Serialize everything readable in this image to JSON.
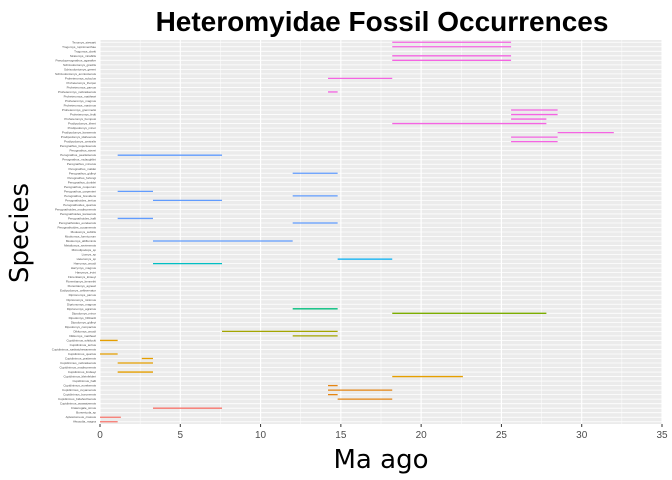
{
  "chart_data": {
    "type": "range-segment",
    "title": "Heteromyidae Fossil Occurrences",
    "xlabel": "Ma ago",
    "ylabel": "Species",
    "xlim": [
      0,
      35
    ],
    "x_ticks": [
      0,
      5,
      10,
      15,
      20,
      25,
      30,
      35
    ],
    "grid": true,
    "legend": "none",
    "panel_background": "#EBEBEB",
    "grid_color": "#FFFFFF",
    "categories": [
      "Texomys_stewarti",
      "Trogomys_rupinimenthae",
      "Trogomys_clarki",
      "Stratomys_mirabilis",
      "Pseudoperognathus_agarafter",
      "Schizodontomys_gracilis",
      "Schizodontomys_greeni",
      "Schizodontomys_amnicolensis",
      "Proheteromys_sulculus",
      "Proheteromys_thorpei",
      "Proheteromys_parvus",
      "Proheteromys_nebraskensis",
      "Proheteromys_matthewi",
      "Proheteromys_magnus",
      "Proheteromys_maximus",
      "Proheteromys_gremmelsi",
      "Proheteromys_fedti",
      "Proheteromys_bumpusi",
      "Prodipodomys_tiheni",
      "Prodipodomys_minor",
      "Prodipodomys_kansensis",
      "Prodipodomys_idahoensis",
      "Prodipodomys_centralis",
      "Perognathus_trojectioensis",
      "Perognathus_stevei",
      "Perognathus_pearlettensis",
      "Perognathus_mclaughlini",
      "Perognathus_minutus",
      "Perognathus_maldei",
      "Perognathus_gidleyi",
      "Perognathus_furlongi",
      "Perognathus_dunklei",
      "Perognathus_coquorum",
      "Perognathus_carpenteri",
      "Perognathus_brevidens",
      "Perognathoides_tertius",
      "Perognathoides_quartus",
      "Perognathoides_madisonensis",
      "Perognathoides_kansensis",
      "Perognathoides_halli",
      "Perognathoides_eurekensis",
      "Perognathoides_cuyamensis",
      "Mookomys_subtilis",
      "Mookomys_formicorum",
      "Mookomys_altifluminis",
      "Metaliomys_sevierensis",
      "Microdipodops_sp",
      "Liomys_sp",
      "Heteromys_sp",
      "Harrymys_woodi",
      "Harrymys_magnus",
      "Harrymys_irvini",
      "Florentiamys_kinseyi",
      "Florentiamys_kennethi",
      "Florentiamys_agnewi",
      "Eodipodomys_celtiservator",
      "Diprionomys_parvus",
      "Diprionomys_minimus",
      "Diprionomys_magnus",
      "Diprionomys_agrarius",
      "Dipodomys_minor",
      "Dipodomys_hibbardi",
      "Dipodomys_gidleyi",
      "Dipodomys_compactus",
      "Dikkomys_woodi",
      "Dikkomys_matthewi",
      "Cupidinimus_whitlocki",
      "Cupidinimus_tertius",
      "Cupidinimus_saskatchewanensis",
      "Cupidinimus_quartus",
      "Cupidinimus_prattensis",
      "Cupidinimus_nebraskensis",
      "Cupidinimus_madisonensis",
      "Cupidinimus_lindsayi",
      "Cupidinimus_kleinfelderi",
      "Cupidinimus_halli",
      "Cupidinimus_eurekensis",
      "Cupidinimus_cuyamensis",
      "Cupidinimus_boronensis",
      "Cupidinimus_bidahochiensis",
      "Cupidinimus_avawatzensis",
      "Craterogale_simus",
      "Bursericola_sp",
      "Apletotomeus_crassus",
      "Alwoodia_magna"
    ],
    "segments": [
      {
        "category": "Texomys_stewarti",
        "start": 18.2,
        "end": 25.6,
        "color": "#F564E3"
      },
      {
        "category": "Trogomys_rupinimenthae",
        "start": 18.2,
        "end": 25.6,
        "color": "#F564E3"
      },
      {
        "category": "Stratomys_mirabilis",
        "start": 18.2,
        "end": 25.6,
        "color": "#F564E3"
      },
      {
        "category": "Pseudoperognathus_agarafter",
        "start": 18.2,
        "end": 25.6,
        "color": "#F564E3"
      },
      {
        "category": "Proheteromys_sulculus",
        "start": 14.2,
        "end": 18.2,
        "color": "#F564E3"
      },
      {
        "category": "Proheteromys_nebraskensis",
        "start": 14.2,
        "end": 14.8,
        "color": "#F564E3"
      },
      {
        "category": "Proheteromys_gremmelsi",
        "start": 25.6,
        "end": 28.5,
        "color": "#F564E3"
      },
      {
        "category": "Proheteromys_fedti",
        "start": 25.6,
        "end": 28.5,
        "color": "#F564E3"
      },
      {
        "category": "Proheteromys_bumpusi",
        "start": 25.6,
        "end": 27.8,
        "color": "#F564E3"
      },
      {
        "category": "Prodipodomys_tiheni",
        "start": 18.2,
        "end": 27.8,
        "color": "#F564E3"
      },
      {
        "category": "Prodipodomys_kansensis",
        "start": 28.5,
        "end": 32.0,
        "color": "#F564E3"
      },
      {
        "category": "Prodipodomys_idahoensis",
        "start": 25.6,
        "end": 28.5,
        "color": "#F564E3"
      },
      {
        "category": "Prodipodomys_centralis",
        "start": 25.6,
        "end": 28.5,
        "color": "#F564E3"
      },
      {
        "category": "Perognathus_pearlettensis",
        "start": 1.1,
        "end": 7.6,
        "color": "#619CFF"
      },
      {
        "category": "Perognathus_gidleyi",
        "start": 12.0,
        "end": 14.8,
        "color": "#619CFF"
      },
      {
        "category": "Perognathus_carpenteri",
        "start": 1.1,
        "end": 3.3,
        "color": "#619CFF"
      },
      {
        "category": "Perognathus_brevidens",
        "start": 12.0,
        "end": 14.8,
        "color": "#619CFF"
      },
      {
        "category": "Perognathoides_tertius",
        "start": 3.3,
        "end": 7.6,
        "color": "#619CFF"
      },
      {
        "category": "Perognathoides_halli",
        "start": 1.1,
        "end": 3.3,
        "color": "#619CFF"
      },
      {
        "category": "Perognathoides_eurekensis",
        "start": 12.0,
        "end": 14.8,
        "color": "#619CFF"
      },
      {
        "category": "Mookomys_altifluminis",
        "start": 3.3,
        "end": 12.0,
        "color": "#619CFF"
      },
      {
        "category": "Heteromys_sp",
        "start": 14.8,
        "end": 18.2,
        "color": "#00B0F6"
      },
      {
        "category": "Harrymys_woodi",
        "start": 3.3,
        "end": 7.6,
        "color": "#00BFC4"
      },
      {
        "category": "Diprionomys_agrarius",
        "start": 12.0,
        "end": 14.8,
        "color": "#00BF7D"
      },
      {
        "category": "Dipodomys_minor",
        "start": 18.2,
        "end": 27.8,
        "color": "#7CAE00"
      },
      {
        "category": "Dikkomys_woodi",
        "start": 7.6,
        "end": 14.8,
        "color": "#A3A500"
      },
      {
        "category": "Dikkomys_matthewi",
        "start": 12.0,
        "end": 14.8,
        "color": "#A3A500"
      },
      {
        "category": "Cupidinimus_whitlocki",
        "start": 0.0,
        "end": 1.1,
        "color": "#E69F00"
      },
      {
        "category": "Cupidinimus_quartus",
        "start": 0.0,
        "end": 1.1,
        "color": "#E69F00"
      },
      {
        "category": "Cupidinimus_prattensis",
        "start": 2.6,
        "end": 3.3,
        "color": "#E69F00"
      },
      {
        "category": "Cupidinimus_nebraskensis",
        "start": 1.1,
        "end": 3.3,
        "color": "#E69F00"
      },
      {
        "category": "Cupidinimus_lindsayi",
        "start": 1.1,
        "end": 3.3,
        "color": "#E69F00"
      },
      {
        "category": "Cupidinimus_kleinfelderi",
        "start": 18.2,
        "end": 22.6,
        "color": "#E69F00"
      },
      {
        "category": "Cupidinimus_eurekensis",
        "start": 14.2,
        "end": 14.8,
        "color": "#E68613"
      },
      {
        "category": "Cupidinimus_cuyamensis",
        "start": 14.2,
        "end": 18.2,
        "color": "#E68613"
      },
      {
        "category": "Cupidinimus_boronensis",
        "start": 14.2,
        "end": 14.8,
        "color": "#E68613"
      },
      {
        "category": "Cupidinimus_bidahochiensis",
        "start": 14.8,
        "end": 18.2,
        "color": "#E68613"
      },
      {
        "category": "Craterogale_simus",
        "start": 3.3,
        "end": 7.6,
        "color": "#F8766D"
      },
      {
        "category": "Apletotomeus_crassus",
        "start": 0.0,
        "end": 1.3,
        "color": "#F8766D"
      },
      {
        "category": "Alwoodia_magna",
        "start": 0.0,
        "end": 1.1,
        "color": "#F8766D"
      }
    ]
  }
}
